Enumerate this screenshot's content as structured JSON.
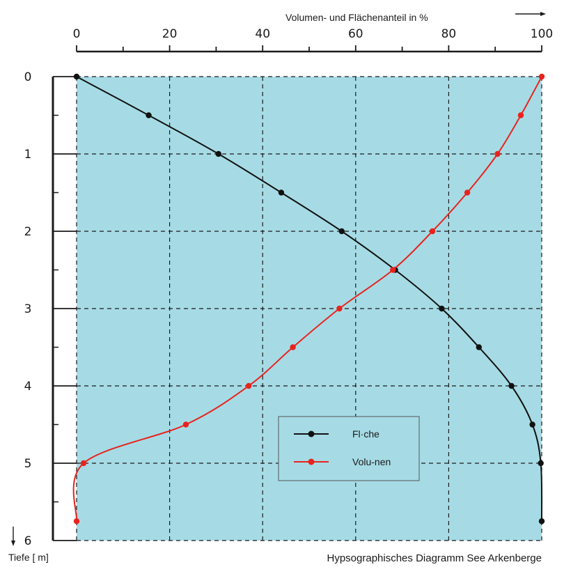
{
  "chart_data": {
    "type": "line",
    "x_axis": {
      "label": "Volumen- und Flächenanteil in %",
      "ticks": [
        0,
        20,
        40,
        60,
        80,
        100
      ],
      "range": [
        0,
        100
      ],
      "position": "top"
    },
    "y_axis": {
      "label": "Tiefe [ m]",
      "ticks": [
        0,
        1,
        2,
        3,
        4,
        5,
        6
      ],
      "range": [
        0,
        6
      ],
      "inverted": true
    },
    "grid": true,
    "plot_background": "#a6dbe5",
    "legend_position": "bottom-center",
    "caption": "Hypsographisches Diagramm See Arkenberge",
    "series": [
      {
        "name": "Fläche",
        "color": "#111111",
        "points": [
          {
            "x": 0,
            "y": 0
          },
          {
            "x": 15.5,
            "y": 0.5
          },
          {
            "x": 30.5,
            "y": 1.0
          },
          {
            "x": 44.0,
            "y": 1.5
          },
          {
            "x": 57.0,
            "y": 2.0
          },
          {
            "x": 68.5,
            "y": 2.5
          },
          {
            "x": 78.5,
            "y": 3.0
          },
          {
            "x": 86.5,
            "y": 3.5
          },
          {
            "x": 93.5,
            "y": 4.0
          },
          {
            "x": 98.0,
            "y": 4.5
          },
          {
            "x": 99.8,
            "y": 5.0
          },
          {
            "x": 100,
            "y": 5.75
          }
        ]
      },
      {
        "name": "Volumen",
        "color": "#e8231c",
        "points": [
          {
            "x": 100,
            "y": 0
          },
          {
            "x": 95.5,
            "y": 0.5
          },
          {
            "x": 90.5,
            "y": 1.0
          },
          {
            "x": 84.0,
            "y": 1.5
          },
          {
            "x": 76.5,
            "y": 2.0
          },
          {
            "x": 68.0,
            "y": 2.5
          },
          {
            "x": 56.5,
            "y": 3.0
          },
          {
            "x": 46.5,
            "y": 3.5
          },
          {
            "x": 37.0,
            "y": 4.0
          },
          {
            "x": 23.5,
            "y": 4.5
          },
          {
            "x": 1.5,
            "y": 5.0
          },
          {
            "x": 0,
            "y": 5.75
          }
        ]
      }
    ],
    "legend": [
      {
        "label": "Fl·che",
        "series": "Fläche"
      },
      {
        "label": "Volu-nen",
        "series": "Volumen"
      }
    ]
  }
}
